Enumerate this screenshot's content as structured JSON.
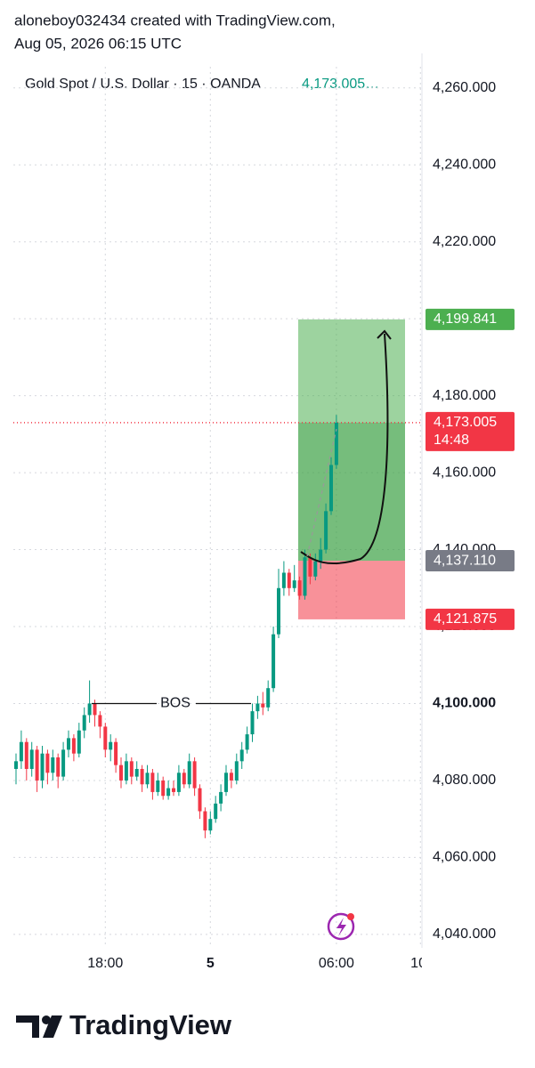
{
  "chart_data": {
    "type": "candlestick",
    "header": [
      "aloneboy032434 created with TradingView.com,",
      "Aug 05, 2026 06:15 UTC"
    ],
    "title": "Gold Spot / U.S. Dollar · 15 · OANDA",
    "legend_price": "4,173.005…",
    "x": [
      "13:45",
      "14:00",
      "14:15",
      "14:30",
      "14:45",
      "15:00",
      "15:15",
      "15:30",
      "15:45",
      "16:00",
      "16:15",
      "16:30",
      "16:45",
      "17:00",
      "17:15",
      "17:30",
      "17:45",
      "18:00",
      "18:15",
      "18:30",
      "18:45",
      "19:00",
      "19:15",
      "19:30",
      "19:45",
      "20:00",
      "20:15",
      "20:30",
      "20:45",
      "21:00",
      "21:15",
      "21:30",
      "21:45",
      "23:00",
      "23:15",
      "23:30",
      "23:45",
      "00:00",
      "00:15",
      "00:30",
      "00:45",
      "01:00",
      "01:15",
      "01:30",
      "01:45",
      "02:00",
      "02:15",
      "02:30",
      "02:45",
      "03:00",
      "03:15",
      "03:30",
      "03:45",
      "04:00",
      "04:15",
      "04:30",
      "04:45",
      "05:00",
      "05:15",
      "05:30",
      "05:45",
      "06:00"
    ],
    "open": [
      4083,
      4085,
      4090,
      4083,
      4088,
      4080,
      4087,
      4082,
      4086,
      4081,
      4088,
      4091,
      4087,
      4093,
      4097,
      4100,
      4097,
      4094,
      4088,
      4090,
      4084,
      4080,
      4085,
      4081,
      4083,
      4079,
      4082,
      4077,
      4080,
      4076,
      4078,
      4077,
      4082,
      4079,
      4085,
      4078,
      4072,
      4067,
      4070,
      4074,
      4077,
      4082,
      4080,
      4085,
      4088,
      4092,
      4098,
      4100,
      4099,
      4104,
      4118,
      4130,
      4134,
      4130,
      4132,
      4128,
      4138,
      4133,
      4137,
      4140,
      4150,
      4162
    ],
    "high": [
      4087,
      4093,
      4091,
      4090,
      4089,
      4089,
      4088,
      4088,
      4087,
      4090,
      4093,
      4092,
      4095,
      4099,
      4106,
      4101,
      4098,
      4095,
      4092,
      4091,
      4086,
      4087,
      4086,
      4085,
      4084,
      4084,
      4083,
      4082,
      4081,
      4080,
      4080,
      4084,
      4083,
      4087,
      4086,
      4079,
      4073,
      4072,
      4076,
      4079,
      4084,
      4083,
      4087,
      4090,
      4094,
      4100,
      4102,
      4103,
      4106,
      4120,
      4135,
      4137,
      4135,
      4136,
      4133,
      4140,
      4139,
      4139,
      4143,
      4152,
      4164,
      4175
    ],
    "low": [
      4079,
      4083,
      4080,
      4081,
      4077,
      4078,
      4079,
      4080,
      4078,
      4080,
      4086,
      4085,
      4086,
      4091,
      4095,
      4094,
      4091,
      4086,
      4085,
      4082,
      4078,
      4079,
      4079,
      4080,
      4077,
      4078,
      4075,
      4076,
      4075,
      4075,
      4076,
      4076,
      4078,
      4078,
      4076,
      4070,
      4065,
      4066,
      4069,
      4072,
      4076,
      4078,
      4079,
      4083,
      4087,
      4090,
      4096,
      4097,
      4098,
      4103,
      4117,
      4128,
      4128,
      4129,
      4127,
      4127,
      4131,
      4132,
      4135,
      4139,
      4149,
      4161
    ],
    "close": [
      4085,
      4090,
      4083,
      4088,
      4080,
      4087,
      4082,
      4086,
      4081,
      4088,
      4091,
      4087,
      4093,
      4097,
      4100,
      4097,
      4094,
      4088,
      4090,
      4084,
      4080,
      4085,
      4081,
      4083,
      4079,
      4082,
      4077,
      4080,
      4076,
      4078,
      4077,
      4082,
      4079,
      4085,
      4078,
      4072,
      4067,
      4070,
      4074,
      4077,
      4082,
      4080,
      4085,
      4088,
      4092,
      4098,
      4100,
      4099,
      4104,
      4118,
      4130,
      4134,
      4130,
      4132,
      4128,
      4138,
      4133,
      4137,
      4140,
      4150,
      4162,
      4173.005
    ],
    "up_color": "#089981",
    "down_color": "#f23645",
    "ylim": [
      4036.5,
      4265.5
    ],
    "yticks": [
      {
        "value": 4040,
        "label": "4,040.000"
      },
      {
        "value": 4060,
        "label": "4,060.000"
      },
      {
        "value": 4080,
        "label": "4,080.000"
      },
      {
        "value": 4100,
        "label": "4,100.000"
      },
      {
        "value": 4120,
        "label": "4,120.000"
      },
      {
        "value": 4140,
        "label": "4,140.000"
      },
      {
        "value": 4160,
        "label": "4,160.000"
      },
      {
        "value": 4180,
        "label": "4,180.000"
      },
      {
        "value": 4200,
        "label": "4,200.000"
      },
      {
        "value": 4220,
        "label": "4,220.000"
      },
      {
        "value": 4240,
        "label": "4,240.000"
      },
      {
        "value": 4260,
        "label": "4,260.000"
      }
    ],
    "xticks": [
      {
        "value": "18:00",
        "label": "18:00"
      },
      {
        "value": "00:00",
        "label": "5"
      },
      {
        "value": "06:00",
        "label": "06:00"
      },
      {
        "value": "10:00",
        "label": "10:"
      }
    ],
    "grid": true,
    "position": {
      "target": {
        "value": 4199.841,
        "label": "4,199.841"
      },
      "entry": {
        "value": 4137.11,
        "label": "4,137.110"
      },
      "stop": {
        "value": 4121.875,
        "label": "4,121.875"
      }
    },
    "last_price": {
      "value": 4173.005,
      "label": "4,173.005",
      "countdown": "14:48"
    },
    "annotation": {
      "text": "BOS",
      "level": 4100
    },
    "brand": "TradingView"
  }
}
